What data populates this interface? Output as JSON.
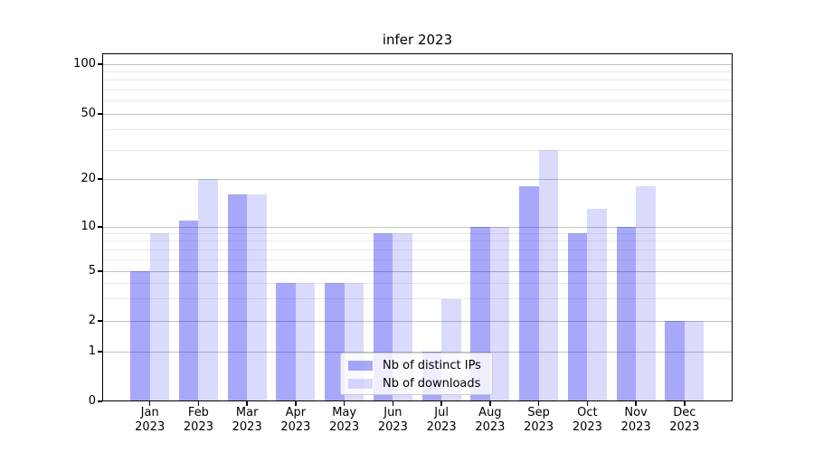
{
  "title": "infer 2023",
  "legend": {
    "items": [
      {
        "label": "Nb of distinct IPs"
      },
      {
        "label": "Nb of downloads"
      }
    ]
  },
  "colors": {
    "bar_distinct_ips": "rgba(5,5,240,0.35)",
    "bar_downloads": "rgba(5,5,240,0.15)",
    "grid_major": "#c2c2c2",
    "grid_minor": "#eaeaea",
    "spine": "#000000"
  },
  "chart_data": {
    "type": "bar",
    "title": "infer 2023",
    "categories": [
      "Jan 2023",
      "Feb 2023",
      "Mar 2023",
      "Apr 2023",
      "May 2023",
      "Jun 2023",
      "Jul 2023",
      "Aug 2023",
      "Sep 2023",
      "Oct 2023",
      "Nov 2023",
      "Dec 2023"
    ],
    "series": [
      {
        "name": "Nb of distinct IPs",
        "color": "rgba(5,5,240,0.35)",
        "values": [
          5,
          11,
          16,
          4,
          4,
          9,
          1,
          10,
          18,
          9,
          10,
          2
        ]
      },
      {
        "name": "Nb of downloads",
        "color": "rgba(5,5,240,0.15)",
        "values": [
          9,
          20,
          16,
          4,
          4,
          9,
          3,
          10,
          30,
          13,
          18,
          2
        ]
      }
    ],
    "xlabel": "",
    "ylabel": "",
    "y_scale": "symlog",
    "y_ticks": [
      0,
      1,
      2,
      5,
      10,
      20,
      50,
      100
    ],
    "y_minor_gridlines": [
      3,
      4,
      6,
      7,
      8,
      9,
      30,
      40,
      60,
      70,
      80,
      90
    ],
    "ylim": [
      0,
      115
    ],
    "grid": true,
    "legend_position": "lower center"
  }
}
